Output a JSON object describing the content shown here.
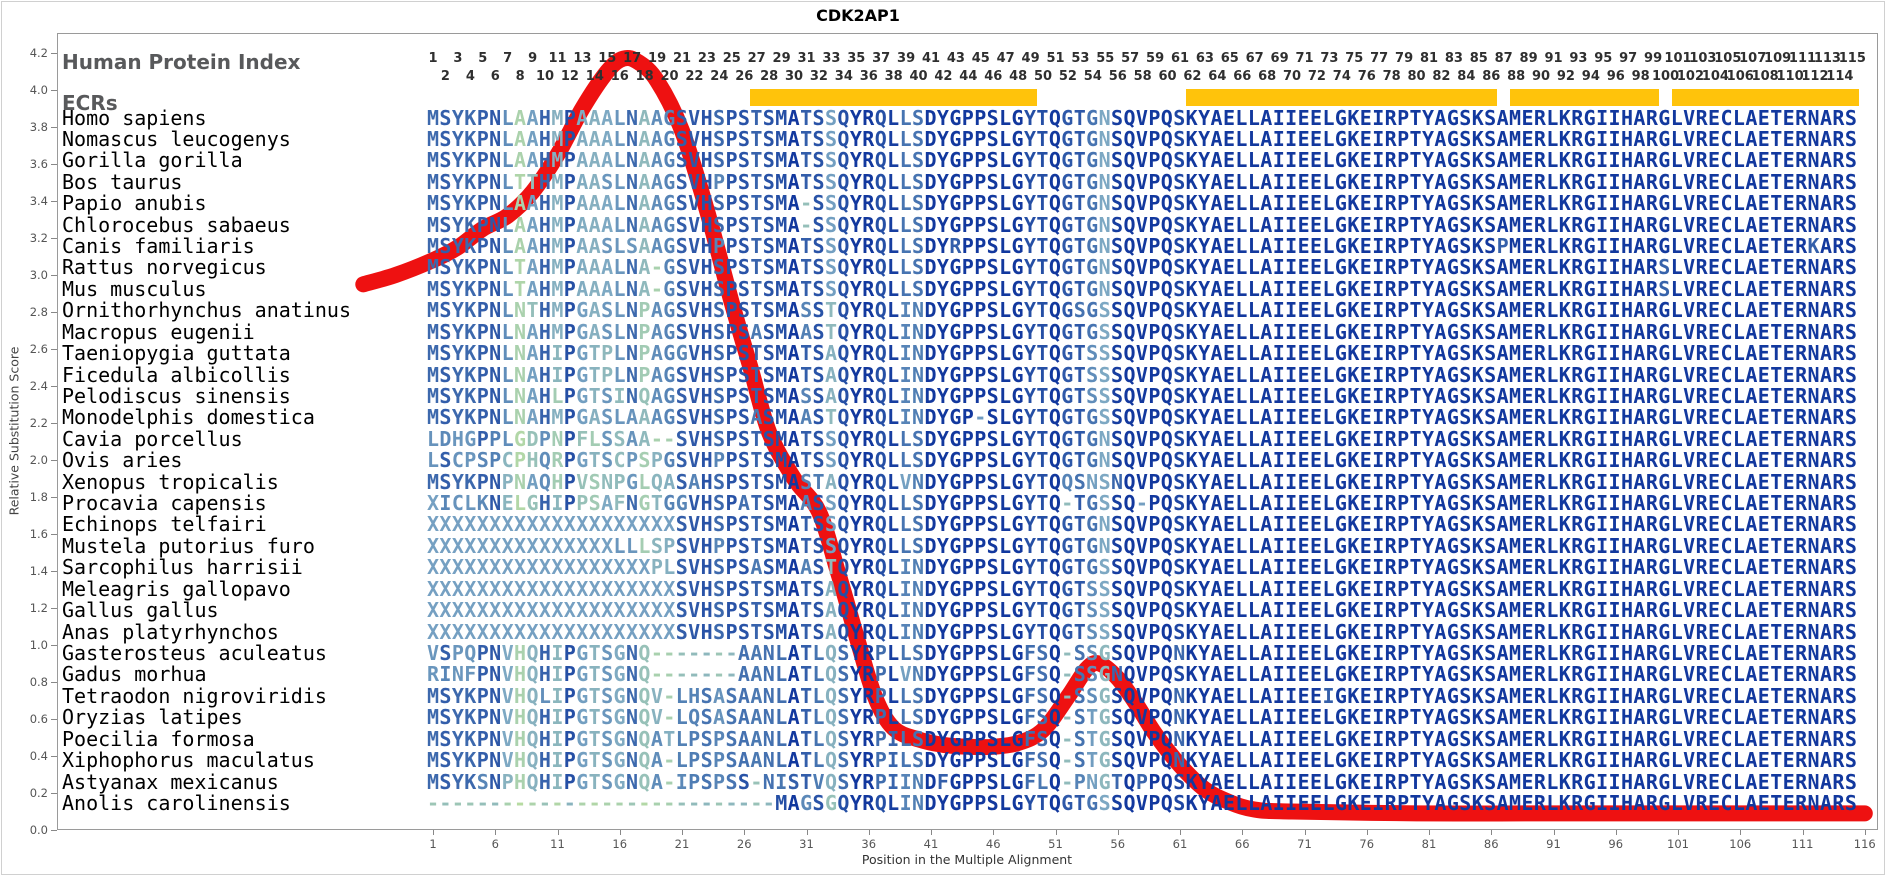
{
  "title": "CDK2AP1",
  "header": {
    "index_label": "Human Protein Index",
    "ecrs_label": "ECRs"
  },
  "index_numbers": {
    "odd": [
      1,
      3,
      5,
      7,
      9,
      11,
      13,
      15,
      17,
      19,
      21,
      23,
      25,
      27,
      29,
      31,
      33,
      35,
      37,
      39,
      41,
      43,
      45,
      47,
      49,
      51,
      53,
      55,
      57,
      59,
      61,
      63,
      65,
      67,
      69,
      71,
      73,
      75,
      77,
      79,
      81,
      83,
      85,
      87,
      89,
      91,
      93,
      95,
      97,
      99,
      101,
      103,
      105,
      107,
      109,
      111,
      113,
      115
    ],
    "even": [
      2,
      4,
      6,
      8,
      10,
      12,
      14,
      16,
      18,
      20,
      22,
      24,
      26,
      28,
      30,
      32,
      34,
      36,
      38,
      40,
      42,
      44,
      46,
      48,
      50,
      52,
      54,
      56,
      58,
      60,
      62,
      64,
      66,
      68,
      70,
      72,
      74,
      76,
      78,
      80,
      82,
      84,
      86,
      88,
      90,
      92,
      94,
      96,
      98,
      100,
      102,
      104,
      106,
      108,
      110,
      112,
      114
    ]
  },
  "ecr_bars": [
    {
      "start_col": 27,
      "end_col": 49
    },
    {
      "start_col": 62,
      "end_col": 86
    },
    {
      "start_col": 88,
      "end_col": 99
    },
    {
      "start_col": 101,
      "end_col": 115
    }
  ],
  "alignment": {
    "num_columns": 115,
    "rows": [
      {
        "name": "Homo sapiens",
        "seq": "MSYKPNLAAHMPAAALNAAGSVHSPSTSMATSSQYRQLLSDYGPPSLGYTQGTGNSQVPQSKYAELLAIIEELGKEIRPTYAGSKSAMERLKRGIIHARGLVRECLAETERNARS"
      },
      {
        "name": "Nomascus leucogenys",
        "seq": "MSYKPNLAAHMPAAALNAAGSVHSPSTSMATSSQYRQLLSDYGPPSLGYTQGTGNSQVPQSKYAELLAIIEELGKEIRPTYAGSKSAMERLKRGIIHARGLVRECLAETERNARS"
      },
      {
        "name": "Gorilla gorilla",
        "seq": "MSYKPNLAAHMPAAALNAAGSVHSPSTSMATSSQYRQLLSDYGPPSLGYTQGTGNSQVPQSKYAELLAIIEELGKEIRPTYAGSKSAMERLKRGIIHARGLVRECLAETERNARS"
      },
      {
        "name": "Bos taurus",
        "seq": "MSYKPNLTTHMPAASLNAAGSVHPPSTSMATSSQYRQLLSDYGPPSLGYTQGTGNSQVPQSKYAELLAIIEELGKEIRPTYAGSKSAMERLKRGIIHARGLVRECLAETERNARS"
      },
      {
        "name": "Papio anubis",
        "seq": "MSYKPNLAAHMPAAALNAAGSVHSPSTSMA-SSQYRQLLSDYGPPSLGYTQGTGNSQVPQSKYAELLAIIEELGKEIRPTYAGSKSAMERLKRGIIHARGLVRECLAETERNARS"
      },
      {
        "name": "Chlorocebus sabaeus",
        "seq": "MSYKPNLAAHMPAAALNAAGSVHSPSTSMA-SSQYRQLLSDYGPPSLGYTQGTGNSQVPQSKYAELLAIIEELGKEIRPTYAGSKSAMERLKRGIIHARGLVRECLAETERNARS"
      },
      {
        "name": "Canis familiaris",
        "seq": "MSYKPNLAAHMPAASLSAAGSVHPPSTSMATSSQYRQLLSDYRPPSLGYTQGTGNSQVPQSKYAELLAIIEELGKEIRPTYAGSKSPMERLKRGIIHARGLVRECLAETERKARS"
      },
      {
        "name": "Rattus norvegicus",
        "seq": "MSYKPNLTAHMPAAALNA-GSVHSPSTSMATSSQYRQLLSDYGPPSLGYTQGTGNSQVPQSKYAELLAIIEELGKEIRPTYAGSKSAMERLKRGIIHARSLVRECLAETERNARS"
      },
      {
        "name": "Mus musculus",
        "seq": "MSYKPNLTAHMPAAALNA-GSVHSPSTSMATSSQYRQLLSDYGPPSLGYTQGTGNSQVPQSKYAELLAIIEELGKEIRPTYAGSKSAMERLKRGIIHARSLVRECLAETERNARS"
      },
      {
        "name": "Ornithorhynchus anatinus",
        "seq": "MSYKPNLNTHMPGASLNPAGSVHSPSTSMASSTQYRQLINDYGPPSLGYTQGSGSSQVPQSKYAELLAIIEELGKEIRPTYAGSKSAMERLKRGIIHARGLVRECLAETERNARS"
      },
      {
        "name": "Macropus eugenii",
        "seq": "MSYKPNLNAHMPGASLNPAGSVHSPSASMAASTQYRQLINDYGPPSLGYTQGTGSSQVPQSKYAELLAIIEELGKEIRPTYAGSKSAMERLKRGIIHARGLVRECLAETERNARS"
      },
      {
        "name": "Taeniopygia guttata",
        "seq": "MSYKPNLNAHIPGTPLNPAGGVHSPSTSMATSAQYRQLINDYGPPSLGYTQGTSSSQVPQSKYAELLAIIEELGKEIRPTYAGSKSAMERLKRGIIHARGLVRECLAETERNARS"
      },
      {
        "name": "Ficedula albicollis",
        "seq": "MSYKPNLNAHIPGTPLNPAGSVHSPSTSMATSAQYRQLINDYGPPSLGYTQGTSSSQVPQSKYAELLAIIEELGKEIRPTYAGSKSAMERLKRGIIHARGLVRECLAETERNARS"
      },
      {
        "name": "Pelodiscus sinensis",
        "seq": "MSYKPNLNAHLPGTSINQAGSVHSPSTSMASSAQYRQLINDYGPPSLGYTQGTSSSQVPQSKYAELLAIIEELGKEIRPTYAGSKSAMERLKRGIIHARGLVRECLAETERNARS"
      },
      {
        "name": "Monodelphis domestica",
        "seq": "MSYKPNLNAHMPGASLAAAGSVHSPSASMAASTQYRQLINDYGP-SLGYTQGTGSSQVPQSKYAELLAIIEELGKEIRPTYAGSKSAMERLKRGIIHARGLVRECLAETERNARS"
      },
      {
        "name": "Cavia porcellus",
        "seq": "LDHGPPLGDPNPFLSSAA--SVHSPSTSMATSSQYRQLLSDYGPPSLGYTQGTGNSQVPQSKYAELLAIIEELGKEIRPTYAGSKSAMERLKRGIIHARGLVRECLAETERNARS"
      },
      {
        "name": "Ovis aries",
        "seq": "LSCPSPCPHQRPGTSCPSPGSVHPPSTSMATSSQYRQLLSDYGPPSLGYTQGTGNSQVPQSKYAELLAIIEELGKEIRPTYAGSKSAMERLKRGIIHARGLVRECLAETERNARS"
      },
      {
        "name": "Xenopus tropicalis",
        "seq": "MSYKPNPNAQHPVSNPGLQASAHSPSTSMASTAQYRQLVNDYGPPSLGYTQQSNSNQVPQSKYAELLAIIEELGKEIRPTYAGSKSAMERLKRGIIHARGLVRECLAETERNARS"
      },
      {
        "name": "Procavia capensis",
        "seq": "XICLKNELGHIPPSAFNGTGGVHSPATSMAASSQYRQLLSDYGPPSLGYTQ-TGSSQ-PQSKYAELLAIIEELGKEIRPTYAGSKSAMERLKRGIIHARGLVRECLAETERNARS"
      },
      {
        "name": "Echinops telfairi",
        "seq": "XXXXXXXXXXXXXXXXXXXXSVHSPSTSMATSSQYRQLLSDYGPPSLGYTQGTGNSQVPQSKYAELLAIIEELGKEIRPTYAGSKSAMERLKRGIIHARGLVRECLAETERNARS"
      },
      {
        "name": "Mustela putorius furo",
        "seq": "XXXXXXXXXXXXXXXLLLSPSVHPPSTSMATSSQYRQLLSDYGPPSLGYTQGTGNSQVPQSKYAELLAIIEELGKEIRPTYAGSKSAMERLKRGIIHARGLVRECLAETERNARS"
      },
      {
        "name": "Sarcophilus harrisii",
        "seq": "XXXXXXXXXXXXXXXXXXPLSVHSPSASMAASTQYRQLINDYGPPSLGYTQGTGSSQVPQSKYAELLAIIEELGKEIRPTYAGSKSAMERLKRGIIHARGLVRECLAETERNARS"
      },
      {
        "name": "Meleagris gallopavo",
        "seq": "XXXXXXXXXXXXXXXXXXXXSVHSPSTSMATSAQYRQLINDYGPPSLGYTQGTSSSQVPQSKYAELLAIIEELGKEIRPTYAGSKSAMERLKRGIIHARGLVRECLAETERNARS"
      },
      {
        "name": "Gallus gallus",
        "seq": "XXXXXXXXXXXXXXXXXXXXSVHSPSTSMATSAQYRQLINDYGPPSLGYTQGTSSSQVPQSKYAELLAIIEELGKEIRPTYAGSKSAMERLKRGIIHARGLVRECLAETERNARS"
      },
      {
        "name": "Anas platyrhynchos",
        "seq": "XXXXXXXXXXXXXXXXXXXXSVHSPSTSMATSAQYRQLINDYGPPSLGYTQGTSSSQVPQSKYAELLAIIEELGKEIRPTYAGSKSAMERLKRGIIHARGLVRECLAETERNARS"
      },
      {
        "name": "Gasterosteus aculeatus",
        "seq": "VSPQPNVHQHIPGTSGNQ-------AANLATLQSYRPLLSDYGPPSLGFSQ-SSGSQVPQNKYAELLAIIEELGKEIRPTYAGSKSAMERLKRGIIHARGLVRECLAETERNARS"
      },
      {
        "name": "Gadus morhua",
        "seq": "RINFPNVHQHIPGTSGNQ-------AANLATLQSYRPLVNDYGPPSLGFSQ-SSGNQVPQSKYAELLAIIEELGKEIRPTYAGSKSAMERLKRGIIHARGLVRECLAETERNARS"
      },
      {
        "name": "Tetraodon nigroviridis",
        "seq": "MSYKPNVHQLIPGTSGNQV-LHSASAANLATLQSYRPLLSDYGPPSLGFSQ-SSGSQVPQNKYAELLAIIEEIGKEIRPTYAGSKSAMERLKRGIIHARGLVRECLAETERNARS"
      },
      {
        "name": "Oryzias latipes",
        "seq": "MSYKPNVHQHIPGTSGNQV-LQSASAANLATLQSYRPLLSDYGPPSLGFSQ-STGSQVPQNKYAELLAIIEELGKEIRPTYAGSKSAMERLKRGIIHARGLVRECLAETERNARS"
      },
      {
        "name": "Poecilia formosa",
        "seq": "MSYKPNVHQHIPGTSGNQATLPSPSAANLATLQSYRPILSDYGPPSLGFSQ-STGSQVPQNKYAELLAIIEELGKEIRPTYAGSKSAMERLKRGIIHARGLVRECLAETERNARS"
      },
      {
        "name": "Xiphophorus maculatus",
        "seq": "MSYKPNVHQHIPGTSGNQA-LPSPSAANLATLQSYRPILSDYGPPSLGFSQ-STGSQVPQNKYAELLAIIEELGKEIRPTYAGSKSAMERLKRGIIHARGLVRECLAETERNARS"
      },
      {
        "name": "Astyanax mexicanus",
        "seq": "MSYKSNPHQHIPGTSGNQA-IPSPSS-NISTVQSYRPIINDFGPPSLGFLQ-PNGTQPPQSKYAELLAIIEELGKEIRPTYAGSKSAMERLKRGIIHARGLVRECLAETERNARS"
      },
      {
        "name": "Anolis carolinensis",
        "seq": "----------------------------MAGSGQYRQLINDYGPPSLGYTQGTGSSQVPQSKYAELLAIIEELGKEIRPTYAGSKSAMERLKRGIIHARGLVRECLAETERNARS"
      }
    ]
  },
  "chart_data": {
    "type": "line",
    "title": "CDK2AP1",
    "xlabel": "Position in the Multiple Alignment",
    "ylabel": "Relative Substitution Score",
    "xlim": [
      1,
      116
    ],
    "ylim": [
      0.0,
      4.2
    ],
    "x_ticks": [
      1,
      6,
      11,
      16,
      21,
      26,
      31,
      36,
      41,
      46,
      51,
      56,
      61,
      66,
      71,
      76,
      81,
      86,
      91,
      96,
      101,
      106,
      111,
      116
    ],
    "y_ticks": [
      4.2,
      4.0,
      3.8,
      3.6,
      3.4,
      3.2,
      3.0,
      2.8,
      2.6,
      2.4,
      2.2,
      2.0,
      1.8,
      1.6,
      1.4,
      1.2,
      1.0,
      0.8,
      0.6,
      0.4,
      0.2,
      0.0
    ],
    "grid": false,
    "legend": "none",
    "series": [
      {
        "name": "Relative Substitution Score",
        "points": [
          [
            -4.6,
            2.95
          ],
          [
            -2.0,
            3.0
          ],
          [
            1,
            3.08
          ],
          [
            3,
            3.15
          ],
          [
            5,
            3.25
          ],
          [
            7,
            3.32
          ],
          [
            9,
            3.45
          ],
          [
            11,
            3.65
          ],
          [
            13,
            3.9
          ],
          [
            15,
            4.1
          ],
          [
            16.3,
            4.17
          ],
          [
            17.5,
            4.15
          ],
          [
            19,
            4.05
          ],
          [
            21,
            3.78
          ],
          [
            23,
            3.35
          ],
          [
            25,
            2.85
          ],
          [
            26.5,
            2.5
          ],
          [
            28,
            2.15
          ],
          [
            30,
            1.9
          ],
          [
            32,
            1.72
          ],
          [
            33.5,
            1.4
          ],
          [
            35,
            1.05
          ],
          [
            36.5,
            0.72
          ],
          [
            38,
            0.55
          ],
          [
            40,
            0.49
          ],
          [
            42,
            0.46
          ],
          [
            44,
            0.45
          ],
          [
            46,
            0.45
          ],
          [
            48,
            0.47
          ],
          [
            50,
            0.54
          ],
          [
            52,
            0.72
          ],
          [
            53.5,
            0.87
          ],
          [
            54.5,
            0.9
          ],
          [
            56,
            0.82
          ],
          [
            57.5,
            0.68
          ],
          [
            59,
            0.52
          ],
          [
            61,
            0.35
          ],
          [
            63,
            0.22
          ],
          [
            65,
            0.15
          ],
          [
            67,
            0.11
          ],
          [
            70,
            0.1
          ],
          [
            80,
            0.09
          ],
          [
            90,
            0.09
          ],
          [
            100,
            0.09
          ],
          [
            108,
            0.09
          ],
          [
            116,
            0.09
          ]
        ]
      }
    ]
  },
  "colors": {
    "curve_red": "#EE1111",
    "ecr_yellow": "#FFC30B",
    "conserved_ramp": [
      "#12389e",
      "#2a54a7",
      "#4b79b2",
      "#7ba6c4",
      "#a2cbb4",
      "#b7dba2"
    ],
    "axis_text": "#555555",
    "panel_label_gray": "#58595b",
    "index_number_color": "#2f2f2f"
  }
}
